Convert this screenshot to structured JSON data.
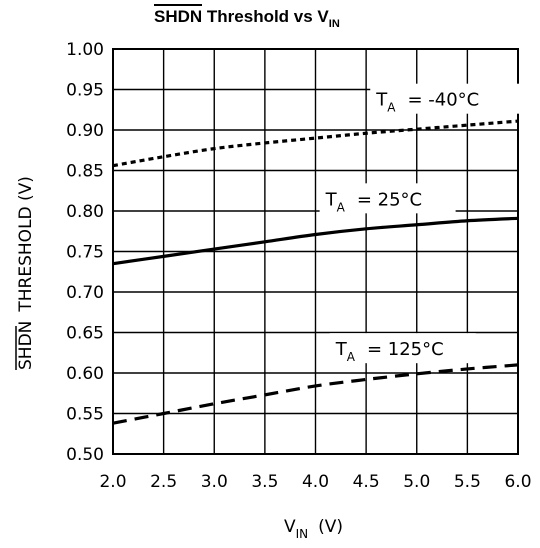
{
  "chart_data": {
    "type": "line",
    "title": {
      "overbar": "SHDN",
      "rest": " Threshold vs V",
      "subscript": "IN"
    },
    "xlabel": {
      "main": "V",
      "subscript": "IN",
      "unit": "(V)"
    },
    "ylabel": {
      "overbar": "SHDN",
      "rest": "THRESHOLD (V)"
    },
    "xlim": [
      2.0,
      6.0
    ],
    "ylim": [
      0.5,
      1.0
    ],
    "xticks": [
      "2.0",
      "2.5",
      "3.0",
      "3.5",
      "4.0",
      "4.5",
      "5.0",
      "5.5",
      "6.0"
    ],
    "yticks": [
      "0.50",
      "0.55",
      "0.60",
      "0.65",
      "0.70",
      "0.75",
      "0.80",
      "0.85",
      "0.90",
      "0.95",
      "1.00"
    ],
    "grid": true,
    "series": [
      {
        "name": "T_A = -40°C",
        "label_main": "T",
        "label_sub": "A",
        "label_rest": "= -40°C",
        "style": "dotted",
        "x": [
          2.0,
          2.5,
          3.0,
          3.5,
          4.0,
          4.5,
          5.0,
          5.5,
          6.0
        ],
        "y": [
          0.856,
          0.867,
          0.877,
          0.884,
          0.89,
          0.896,
          0.901,
          0.906,
          0.911
        ]
      },
      {
        "name": "T_A = 25°C",
        "label_main": "T",
        "label_sub": "A",
        "label_rest": "= 25°C",
        "style": "solid",
        "x": [
          2.0,
          2.5,
          3.0,
          3.5,
          4.0,
          4.5,
          5.0,
          5.5,
          6.0
        ],
        "y": [
          0.735,
          0.744,
          0.753,
          0.762,
          0.771,
          0.778,
          0.783,
          0.788,
          0.791
        ]
      },
      {
        "name": "T_A = 125°C",
        "label_main": "T",
        "label_sub": "A",
        "label_rest": "= 125°C",
        "style": "dashed",
        "x": [
          2.0,
          2.5,
          3.0,
          3.5,
          4.0,
          4.5,
          5.0,
          5.5,
          6.0
        ],
        "y": [
          0.538,
          0.55,
          0.562,
          0.573,
          0.584,
          0.592,
          0.599,
          0.605,
          0.61
        ]
      }
    ]
  }
}
